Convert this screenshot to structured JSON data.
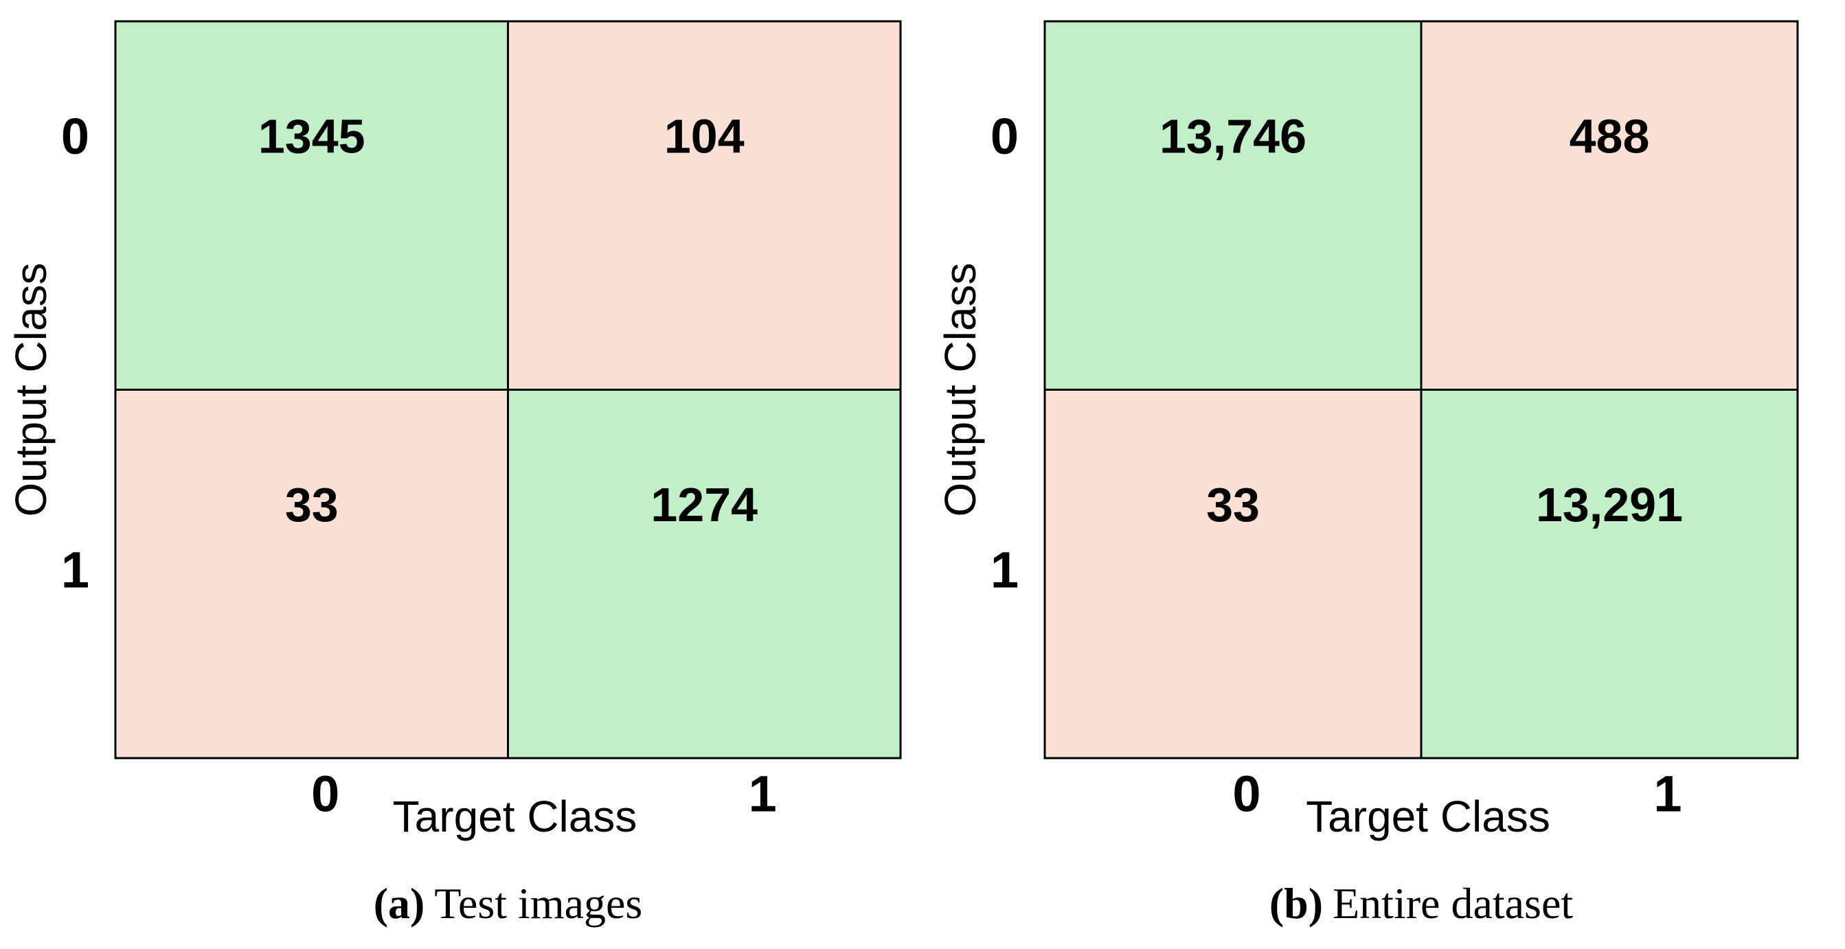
{
  "chart_data": [
    {
      "type": "confusion_matrix",
      "xlabel": "Target Class",
      "ylabel": "Output Class",
      "x_categories": [
        "0",
        "1"
      ],
      "y_categories": [
        "0",
        "1"
      ],
      "values": [
        [
          1345,
          104
        ],
        [
          33,
          1274
        ]
      ],
      "diagonal_color": "#c1efc8",
      "off_diagonal_color": "#fae0d5",
      "caption_label": "(a)",
      "caption": "Test images"
    },
    {
      "type": "confusion_matrix",
      "xlabel": "Target Class",
      "ylabel": "Output Class",
      "x_categories": [
        "0",
        "1"
      ],
      "y_categories": [
        "0",
        "1"
      ],
      "values": [
        [
          13746,
          488
        ],
        [
          33,
          13291
        ]
      ],
      "value_labels": [
        [
          "13,746",
          "488"
        ],
        [
          "33",
          "13,291"
        ]
      ],
      "diagonal_color": "#c1efc8",
      "off_diagonal_color": "#fae0d5",
      "caption_label": "(b)",
      "caption": "Entire dataset"
    }
  ]
}
